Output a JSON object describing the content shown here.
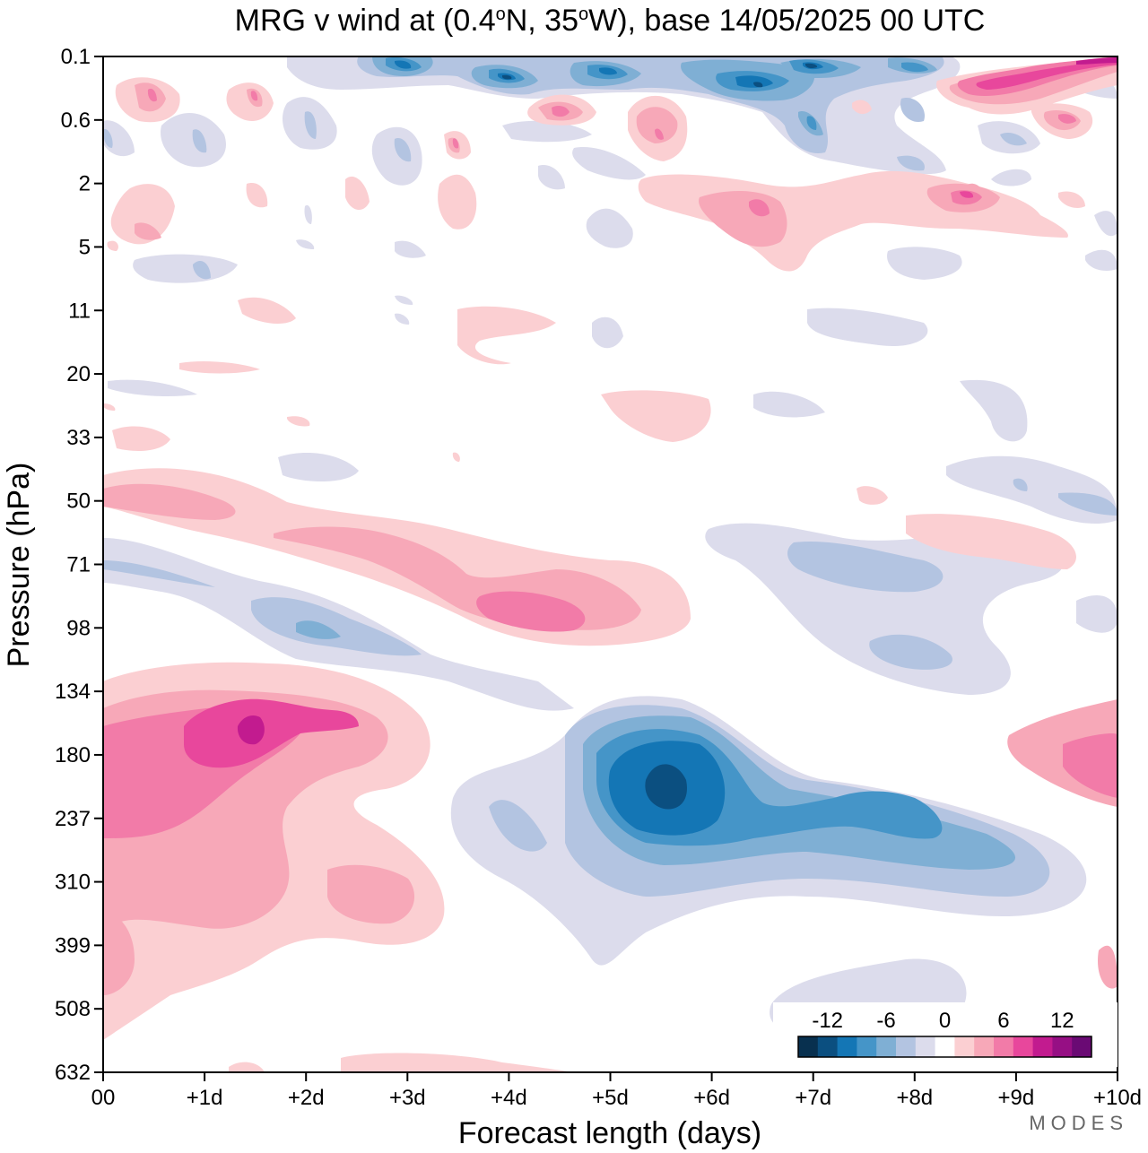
{
  "chart_data": {
    "type": "heatmap",
    "title_main": "MRG v wind at (0.4",
    "title_deg1": "o",
    "title_mid": "N, 35",
    "title_deg2": "o",
    "title_end": "W),  base 14/05/2025  00 UTC",
    "xlabel": "Forecast length (days)",
    "ylabel": "Pressure (hPa)",
    "x_ticks": [
      "00",
      "+1d",
      "+2d",
      "+3d",
      "+4d",
      "+5d",
      "+6d",
      "+7d",
      "+8d",
      "+9d",
      "+10d"
    ],
    "x_range_days": [
      0,
      10
    ],
    "y_ticks": [
      "0.1",
      "0.6",
      "2",
      "5",
      "11",
      "20",
      "33",
      "50",
      "71",
      "98",
      "134",
      "180",
      "237",
      "310",
      "399",
      "508",
      "632"
    ],
    "y_scale": "log-pressure, top 0.1 hPa, bottom 632 hPa",
    "colorbar": {
      "tick_labels": [
        "-12",
        "-6",
        "0",
        "6",
        "12"
      ],
      "colors": [
        "#08304f",
        "#0b4f80",
        "#1476b5",
        "#4595c8",
        "#7fafd4",
        "#b3c4e1",
        "#dcdcec",
        "#ffffff",
        "#fbcfd2",
        "#f7a8b8",
        "#f27ba8",
        "#e8479c",
        "#c21b8f",
        "#960f84",
        "#6a0a74"
      ]
    },
    "features": [
      {
        "day": 1.5,
        "p": 170,
        "v": 11,
        "sign": "positive"
      },
      {
        "day": 5.5,
        "p": 200,
        "v": -11,
        "sign": "negative"
      },
      {
        "day": 8.0,
        "p": 250,
        "v": -7,
        "sign": "negative"
      },
      {
        "day": 4.5,
        "p": 90,
        "v": 8,
        "sign": "positive"
      },
      {
        "day": 0.8,
        "p": 55,
        "v": 5,
        "sign": "positive"
      },
      {
        "day": 2.0,
        "p": 95,
        "v": -5,
        "sign": "negative"
      },
      {
        "day": 6.5,
        "p": 0.15,
        "v": -11,
        "sign": "negative"
      },
      {
        "day": 9.5,
        "p": 0.2,
        "v": 9,
        "sign": "positive"
      },
      {
        "day": 6.5,
        "p": 3,
        "v": 6,
        "sign": "positive"
      }
    ]
  },
  "branding": "MODES"
}
